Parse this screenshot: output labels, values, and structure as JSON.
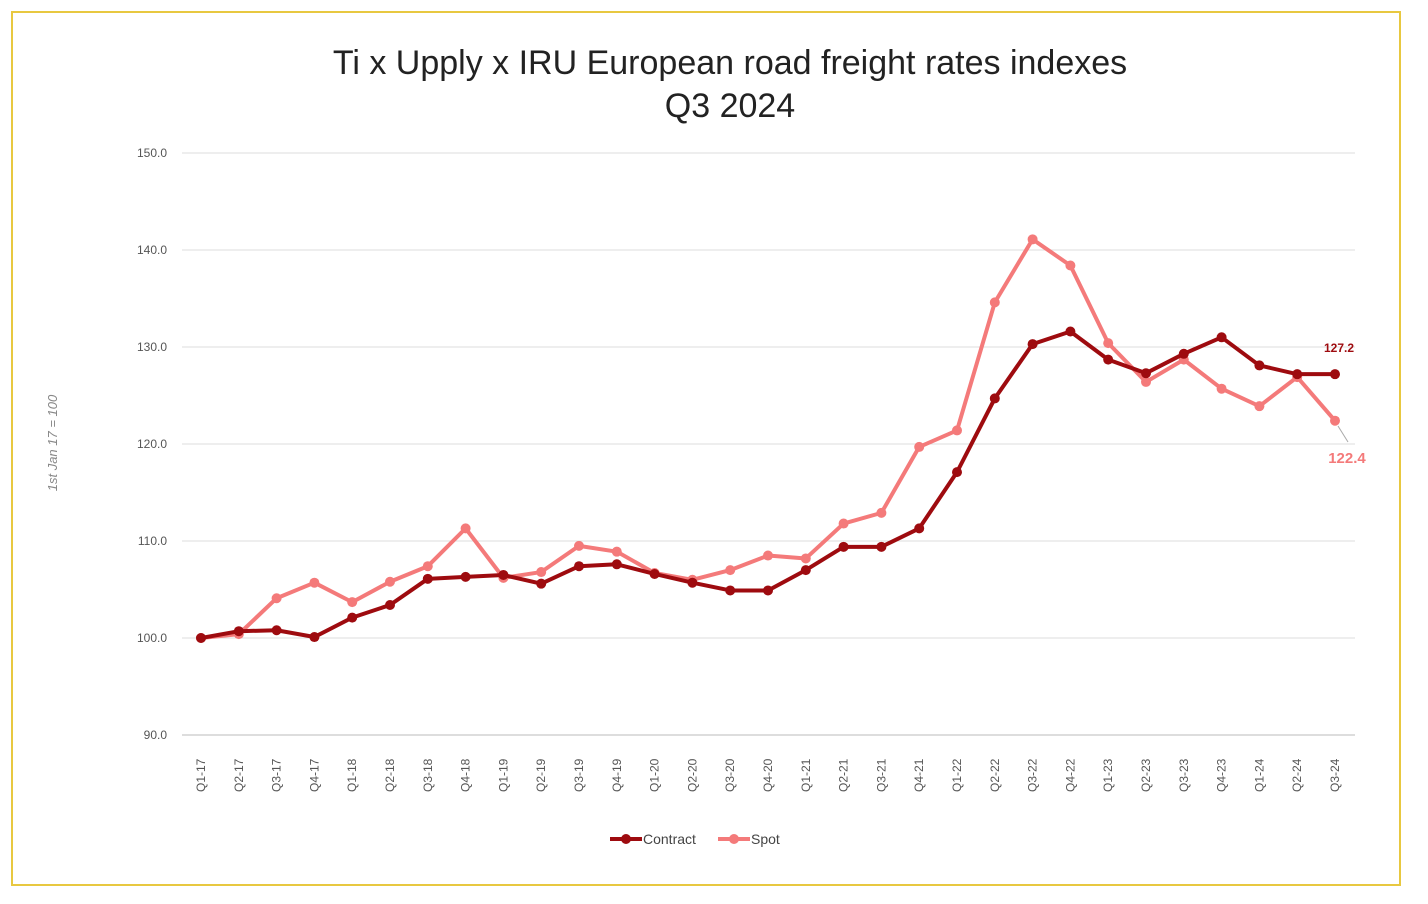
{
  "chart_data": {
    "type": "line",
    "title": "Ti x Upply x IRU European road freight rates indexes",
    "subtitle": "Q3 2024",
    "xlabel": "",
    "ylabel": "1st Jan 17 = 100",
    "ylim": [
      90,
      150
    ],
    "yticks": [
      "90.0",
      "100.0",
      "110.0",
      "120.0",
      "130.0",
      "140.0",
      "150.0"
    ],
    "grid": true,
    "legend_position": "bottom",
    "categories": [
      "Q1-17",
      "Q2-17",
      "Q3-17",
      "Q4-17",
      "Q1-18",
      "Q2-18",
      "Q3-18",
      "Q4-18",
      "Q1-19",
      "Q2-19",
      "Q3-19",
      "Q4-19",
      "Q1-20",
      "Q2-20",
      "Q3-20",
      "Q4-20",
      "Q1-21",
      "Q2-21",
      "Q3-21",
      "Q4-21",
      "Q1-22",
      "Q2-22",
      "Q3-22",
      "Q4-22",
      "Q1-23",
      "Q2-23",
      "Q3-23",
      "Q4-23",
      "Q1-24",
      "Q2-24",
      "Q3-24"
    ],
    "series": [
      {
        "name": "Contract",
        "color": "#9e0b0f",
        "end_label": "127.2",
        "values": [
          100.0,
          100.7,
          100.8,
          100.1,
          102.1,
          103.4,
          106.1,
          106.3,
          106.5,
          105.6,
          107.4,
          107.6,
          106.6,
          105.7,
          104.9,
          104.9,
          107.0,
          109.4,
          109.4,
          111.3,
          117.1,
          124.7,
          130.3,
          131.6,
          128.7,
          127.3,
          129.3,
          131.0,
          128.1,
          127.2,
          127.2
        ]
      },
      {
        "name": "Spot",
        "color": "#f47a7a",
        "end_label": "122.4",
        "values": [
          100.0,
          100.4,
          104.1,
          105.7,
          103.7,
          105.8,
          107.4,
          111.3,
          106.2,
          106.8,
          109.5,
          108.9,
          106.7,
          106.0,
          107.0,
          108.5,
          108.2,
          111.8,
          112.9,
          119.7,
          121.4,
          134.6,
          141.1,
          138.4,
          130.4,
          126.4,
          128.7,
          125.7,
          123.9,
          126.9,
          122.4
        ]
      }
    ]
  }
}
